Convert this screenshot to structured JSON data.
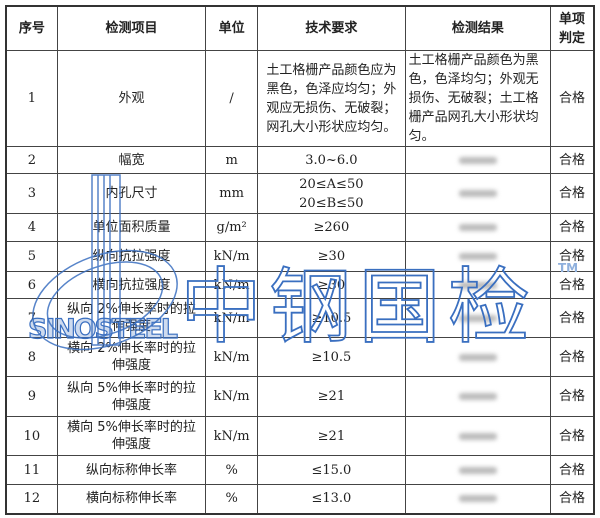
{
  "headers": [
    "序号",
    "检测项目",
    "单位",
    "技术要求",
    "检测结果",
    "单项判定"
  ],
  "rows": [
    {
      "no": "1",
      "item": "外观",
      "unit": "/",
      "req": "土工格栅产品颜色应为黑色，色泽应均匀；外观应无损伤、无破裂；网孔大小形状应均匀。",
      "result": "土工格栅产品颜色为黑色，色泽均匀；外观无损伤、无破裂；土工格栅产品网孔大小形状均匀。",
      "verdict": "合格"
    },
    {
      "no": "2",
      "item": "幅宽",
      "unit": "m",
      "req": "3.0~6.0",
      "result": "",
      "verdict": "合格"
    },
    {
      "no": "3",
      "item": "内孔尺寸",
      "unit": "mm",
      "req": "20≤A≤50",
      "req2": "20≤B≤50",
      "result": "",
      "verdict": "合格"
    },
    {
      "no": "4",
      "item": "单位面积质量",
      "unit": "g/m²",
      "req": "≥260",
      "result": "",
      "verdict": "合格"
    },
    {
      "no": "5",
      "item": "纵向抗拉强度",
      "unit": "kN/m",
      "req": "≥30",
      "result": "",
      "verdict": "合格"
    },
    {
      "no": "6",
      "item": "横向抗拉强度",
      "unit": "kN/m",
      "req": "≥30",
      "result": "",
      "verdict": "合格"
    },
    {
      "no": "7",
      "item": "纵向 2%伸长率时的拉伸强度",
      "unit": "kN/m",
      "req": "≥10.5",
      "result": "",
      "verdict": "合格"
    },
    {
      "no": "8",
      "item": "横向 2%伸长率时的拉伸强度",
      "unit": "kN/m",
      "req": "≥10.5",
      "result": "",
      "verdict": "合格"
    },
    {
      "no": "9",
      "item": "纵向 5%伸长率时的拉伸强度",
      "unit": "kN/m",
      "req": "≥21",
      "result": "",
      "verdict": "合格"
    },
    {
      "no": "10",
      "item": "横向 5%伸长率时的拉伸强度",
      "unit": "kN/m",
      "req": "≥21",
      "result": "",
      "verdict": "合格"
    },
    {
      "no": "11",
      "item": "纵向标称伸长率",
      "unit": "%",
      "req": "≤15.0",
      "result": "",
      "verdict": "合格"
    },
    {
      "no": "12",
      "item": "横向标称伸长率",
      "unit": "%",
      "req": "≤13.0",
      "result": "",
      "verdict": "合格"
    }
  ],
  "watermark": {
    "logo_text": "SINOSTEEL",
    "cn_text": "中钢国检",
    "tm": "TM",
    "color": "#3a6fc0"
  }
}
